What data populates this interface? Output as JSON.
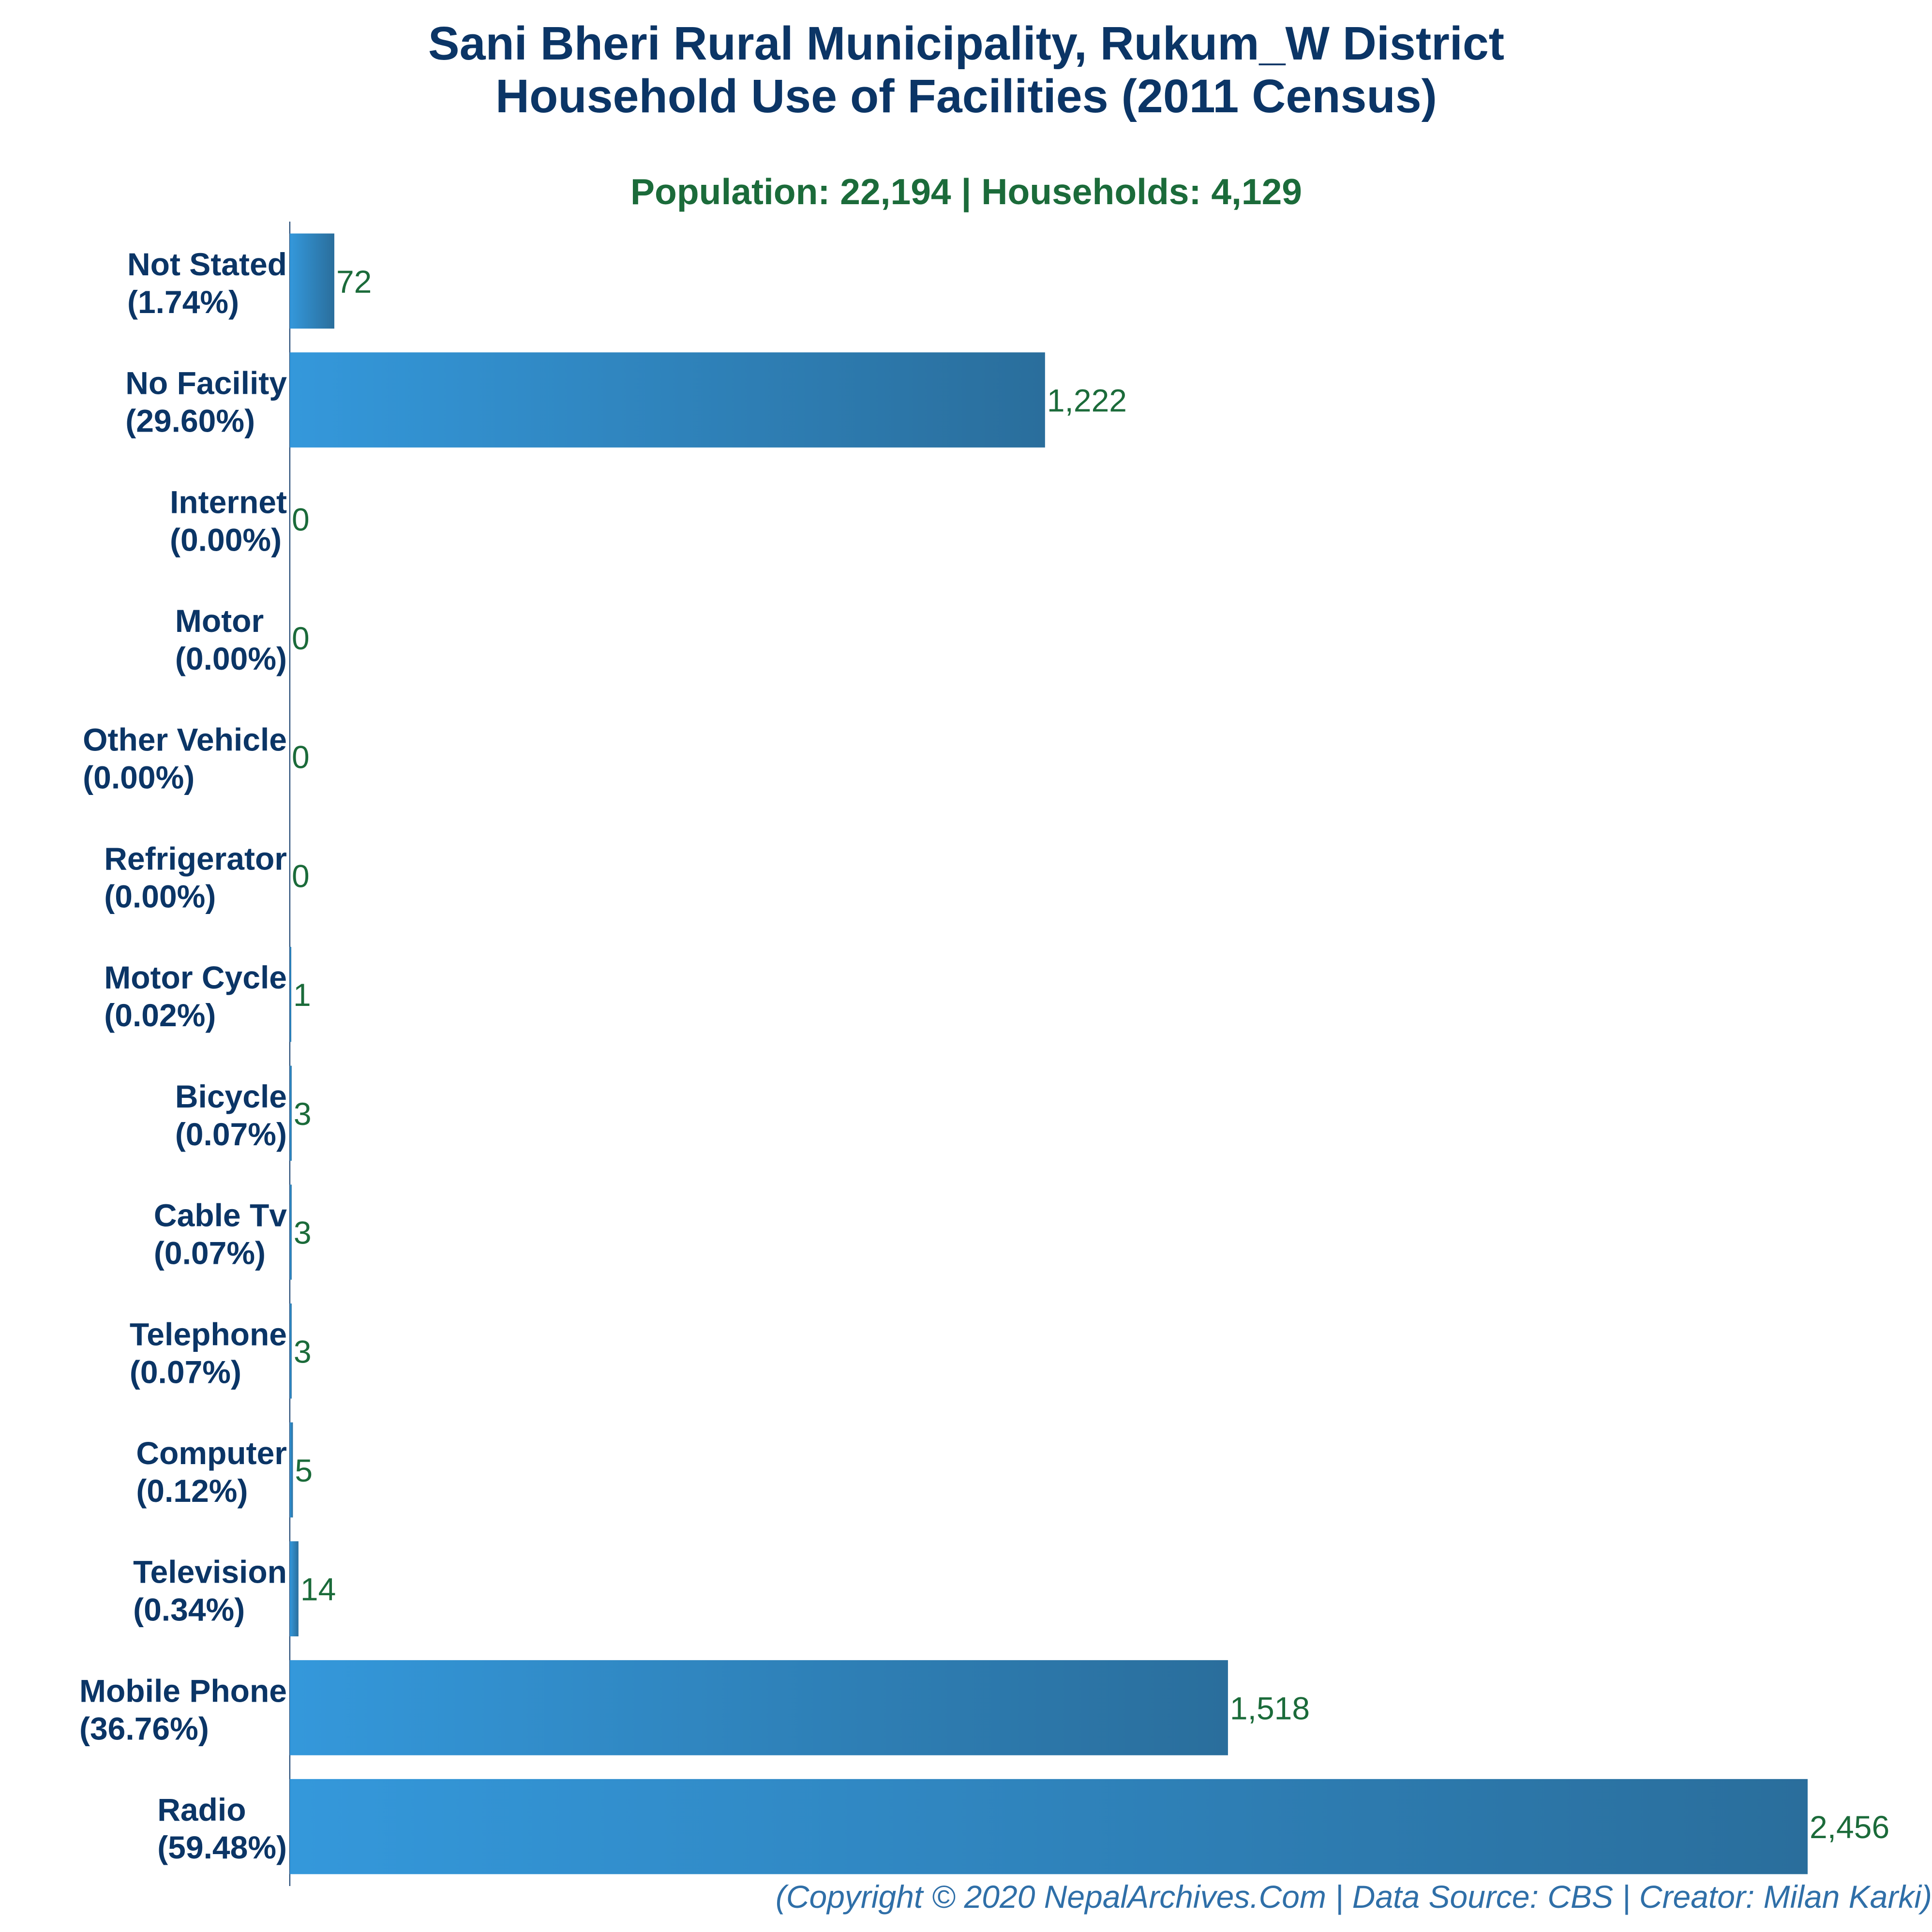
{
  "colors": {
    "title": "#0b3566",
    "subtitle": "#1b6b3a",
    "category": "#0b3566",
    "value_label": "#1b6b3a",
    "footer": "#2f6fa8",
    "bar_start": "#3498db",
    "bar_end": "#2a6e9c",
    "axis": "#0b3566"
  },
  "chart_data": {
    "type": "bar",
    "orientation": "horizontal",
    "title_lines": [
      "Sani Bheri Rural Municipality, Rukum_W District",
      "Household Use of Facilities (2011 Census)"
    ],
    "subtitle": "Population: 22,194 | Households: 4,129",
    "categories": [
      "Not Stated",
      "No Facility",
      "Internet",
      "Motor",
      "Other Vehicle",
      "Refrigerator",
      "Motor Cycle",
      "Bicycle",
      "Cable Tv",
      "Telephone",
      "Computer",
      "Television",
      "Mobile Phone",
      "Radio"
    ],
    "percent_labels": [
      "(1.74%)",
      "(29.60%)",
      "(0.00%)",
      "(0.00%)",
      "(0.00%)",
      "(0.00%)",
      "(0.02%)",
      "(0.07%)",
      "(0.07%)",
      "(0.07%)",
      "(0.12%)",
      "(0.34%)",
      "(36.76%)",
      "(59.48%)"
    ],
    "values": [
      72,
      1222,
      0,
      0,
      0,
      0,
      1,
      3,
      3,
      3,
      5,
      14,
      1518,
      2456
    ],
    "value_labels": [
      "72",
      "1,222",
      "0",
      "0",
      "0",
      "0",
      "1",
      "3",
      "3",
      "3",
      "5",
      "14",
      "1,518",
      "2,456"
    ],
    "xlim": [
      0,
      2456
    ],
    "grid": false,
    "legend": "none"
  },
  "footer": "(Copyright © 2020 NepalArchives.Com | Data Source: CBS | Creator: Milan Karki)"
}
